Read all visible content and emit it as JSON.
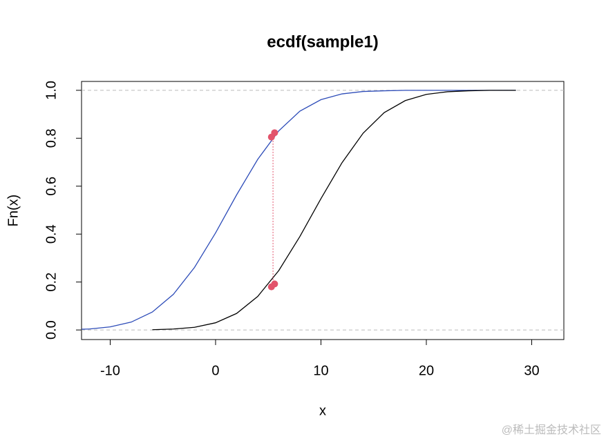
{
  "chart_data": {
    "type": "line",
    "title": "ecdf(sample1)",
    "x_label": "x",
    "y_label": "Fn(x)",
    "xlim": [
      -12.72,
      33.05
    ],
    "ylim": [
      -0.04,
      1.037
    ],
    "xticks": [
      -10,
      0,
      10,
      20,
      30
    ],
    "yticks": [
      {
        "value": 0,
        "label": "0.0"
      },
      {
        "value": 0.2,
        "label": "0.2"
      },
      {
        "value": 0.4,
        "label": "0.4"
      },
      {
        "value": 0.6,
        "label": "0.6"
      },
      {
        "value": 0.8,
        "label": "0.8"
      },
      {
        "value": 1,
        "label": "1.0"
      }
    ],
    "hlines": [
      0,
      1
    ],
    "hline_color": "#bbbbbb",
    "series": [
      {
        "color": "#2c4bb8",
        "x": [
          -12.7,
          -12,
          -10,
          -8,
          -6,
          -4,
          -2,
          0,
          2,
          4,
          6,
          8,
          10,
          12,
          14,
          16,
          18,
          28.5
        ],
        "values": [
          0.003,
          0.004,
          0.013,
          0.033,
          0.075,
          0.149,
          0.261,
          0.405,
          0.564,
          0.712,
          0.831,
          0.913,
          0.961,
          0.985,
          0.995,
          0.998,
          1,
          1
        ]
      },
      {
        "color": "#000000",
        "x": [
          -6,
          -4,
          -2,
          0,
          2,
          4,
          6,
          8,
          10,
          12,
          14,
          16,
          18,
          20,
          22,
          24,
          26,
          28.5
        ],
        "values": [
          0.001,
          0.004,
          0.011,
          0.03,
          0.069,
          0.14,
          0.248,
          0.39,
          0.548,
          0.698,
          0.821,
          0.907,
          0.957,
          0.983,
          0.994,
          0.998,
          1,
          1
        ]
      }
    ],
    "points": {
      "color": "#e2536b",
      "x": [
        5.3,
        5.6,
        5.3,
        5.6
      ],
      "values": [
        0.805,
        0.823,
        0.18,
        0.192
      ]
    },
    "segment": {
      "color": "#e2536b",
      "x": 5.45,
      "values": [
        0.185,
        0.815
      ]
    },
    "watermark": "@稀土掘金技术社区"
  }
}
